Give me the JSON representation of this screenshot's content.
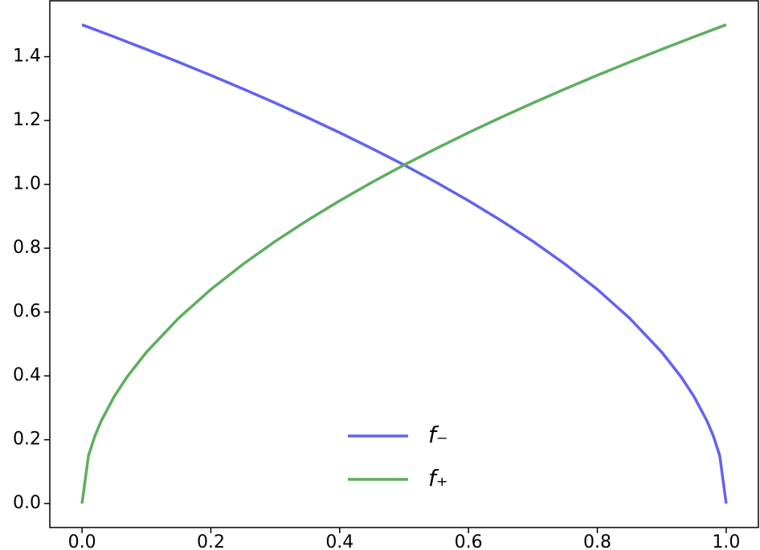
{
  "chart_data": {
    "type": "line",
    "x": [
      0,
      0.01,
      0.02,
      0.03,
      0.05,
      0.07,
      0.1,
      0.15,
      0.2,
      0.25,
      0.3,
      0.35,
      0.4,
      0.45,
      0.5,
      0.55,
      0.6,
      0.65,
      0.7,
      0.75,
      0.8,
      0.85,
      0.9,
      0.93,
      0.95,
      0.97,
      0.98,
      0.99,
      1.0
    ],
    "series": [
      {
        "name": "f₋",
        "color": "#6262f2",
        "values": [
          1.5,
          1.4925,
          1.4849,
          1.4773,
          1.462,
          1.4465,
          1.423,
          1.3829,
          1.3416,
          1.299,
          1.255,
          1.2093,
          1.1619,
          1.1124,
          1.0607,
          1.0062,
          0.9487,
          0.8874,
          0.8216,
          0.75,
          0.6708,
          0.5809,
          0.4743,
          0.3969,
          0.3354,
          0.2598,
          0.2121,
          0.15,
          0
        ]
      },
      {
        "name": "f₊",
        "color": "#5dae5d",
        "values": [
          0,
          0.15,
          0.2121,
          0.2598,
          0.3354,
          0.3969,
          0.4743,
          0.5809,
          0.6708,
          0.75,
          0.8216,
          0.8874,
          0.9487,
          1.0062,
          1.0607,
          1.1124,
          1.1619,
          1.2093,
          1.255,
          1.299,
          1.3416,
          1.3829,
          1.423,
          1.4465,
          1.462,
          1.4773,
          1.4849,
          1.4925,
          1.5
        ]
      }
    ],
    "xlim": [
      -0.05,
      1.05
    ],
    "ylim": [
      -0.075,
      1.575
    ],
    "xticks": [
      {
        "value": 0,
        "label": "0.0"
      },
      {
        "value": 0.2,
        "label": "0.2"
      },
      {
        "value": 0.4,
        "label": "0.4"
      },
      {
        "value": 0.6,
        "label": "0.6"
      },
      {
        "value": 0.8,
        "label": "0.8"
      },
      {
        "value": 1.0,
        "label": "1.0"
      }
    ],
    "yticks": [
      {
        "value": 0,
        "label": "0.0"
      },
      {
        "value": 0.2,
        "label": "0.2"
      },
      {
        "value": 0.4,
        "label": "0.4"
      },
      {
        "value": 0.6,
        "label": "0.6"
      },
      {
        "value": 0.8,
        "label": "0.8"
      },
      {
        "value": 1.0,
        "label": "1.0"
      },
      {
        "value": 1.2,
        "label": "1.2"
      },
      {
        "value": 1.4,
        "label": "1.4"
      }
    ],
    "grid": false,
    "legend": "lower center"
  }
}
